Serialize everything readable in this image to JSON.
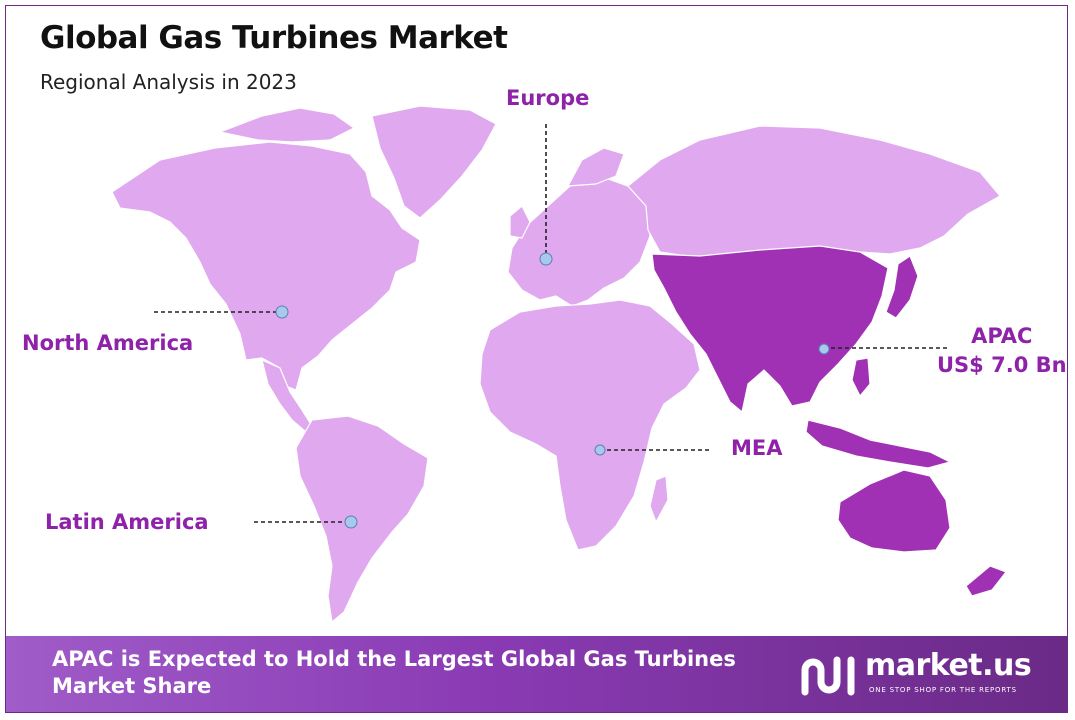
{
  "title": "Global Gas Turbines Market",
  "subtitle": "Regional Analysis in 2023",
  "colors": {
    "region_default": "#e0a8ee",
    "region_highlight": "#a031b4",
    "label": "#8e22a8",
    "marker": "#a8c8ec",
    "banner_start": "#a05cc8",
    "banner_end": "#6a2a86"
  },
  "regions": {
    "europe": {
      "name": "Europe"
    },
    "north_america": {
      "name": "North America"
    },
    "latin_america": {
      "name": "Latin America"
    },
    "mea": {
      "name": "MEA"
    },
    "apac": {
      "name": "APAC",
      "value": "US$ 7.0 Bn",
      "highlighted": true
    }
  },
  "banner": {
    "text": "APAC is Expected to Hold the Largest Global Gas Turbines Market Share"
  },
  "brand": {
    "name": "market.us",
    "tagline": "ONE STOP SHOP FOR THE REPORTS",
    "icon": "market-us-logo-icon"
  }
}
